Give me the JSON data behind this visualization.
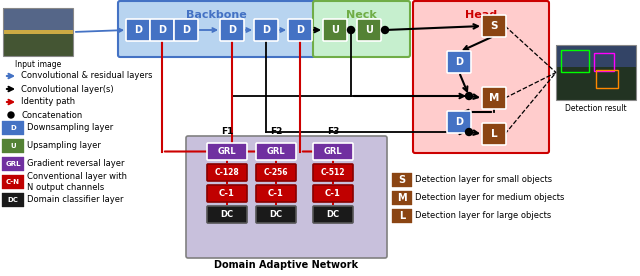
{
  "backbone_label": "Backbone",
  "neck_label": "Neck",
  "head_label": "Head",
  "backbone_color": "#b8d4f0",
  "backbone_border": "#4472c4",
  "neck_color": "#c6efce",
  "neck_border": "#70ad47",
  "head_color": "#ffcccc",
  "head_border": "#cc0000",
  "d_box_color": "#4472c4",
  "u_box_color": "#548235",
  "grl_box_color": "#7030a0",
  "conv_box_color": "#c00000",
  "dc_box_color": "#1a1a1a",
  "det_box_color": "#8B4513",
  "dan_border": "#808080",
  "dan_bg": "#c8c0dc",
  "blue_arrow": "#4472c4",
  "red_arrow": "#cc0000",
  "black_arrow": "#000000"
}
